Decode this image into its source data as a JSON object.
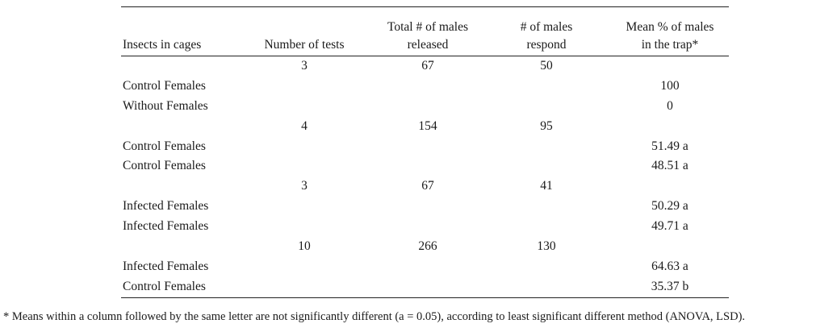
{
  "headers": {
    "insects": "Insects in cages",
    "tests": "Number of tests",
    "total_line1": "Total # of males",
    "total_line2": "released",
    "respond_line1": "# of males",
    "respond_line2": "respond",
    "mean_line1": "Mean % of males",
    "mean_line2": "in the trap*"
  },
  "rows": [
    {
      "insects": "",
      "tests": "3",
      "total": "67",
      "respond": "50",
      "mean": ""
    },
    {
      "insects": "Control Females",
      "tests": "",
      "total": "",
      "respond": "",
      "mean": "100"
    },
    {
      "insects": "Without Females",
      "tests": "",
      "total": "",
      "respond": "",
      "mean": "0"
    },
    {
      "insects": "",
      "tests": "4",
      "total": "154",
      "respond": "95",
      "mean": ""
    },
    {
      "insects": "Control Females",
      "tests": "",
      "total": "",
      "respond": "",
      "mean": "51.49 a"
    },
    {
      "insects": "Control Females",
      "tests": "",
      "total": "",
      "respond": "",
      "mean": "48.51 a"
    },
    {
      "insects": "",
      "tests": "3",
      "total": "67",
      "respond": "41",
      "mean": ""
    },
    {
      "insects": "Infected Females",
      "tests": "",
      "total": "",
      "respond": "",
      "mean": "50.29 a"
    },
    {
      "insects": "Infected Females",
      "tests": "",
      "total": "",
      "respond": "",
      "mean": "49.71 a"
    },
    {
      "insects": "",
      "tests": "10",
      "total": "266",
      "respond": "130",
      "mean": ""
    },
    {
      "insects": "Infected Females",
      "tests": "",
      "total": "",
      "respond": "",
      "mean": "64.63 a"
    },
    {
      "insects": "Control Females",
      "tests": "",
      "total": "",
      "respond": "",
      "mean": "35.37 b"
    }
  ],
  "footnote": "* Means within a column followed by the same letter are not significantly different (a = 0.05), according to least significant different method (ANOVA, LSD)."
}
